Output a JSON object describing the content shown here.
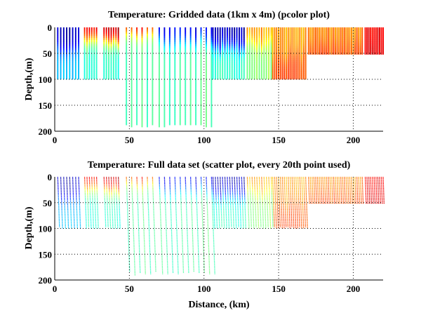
{
  "chart_data": [
    {
      "type": "heatmap",
      "title": "Temperature: Gridded data (1km x 4m) (pcolor plot)",
      "xlabel": "",
      "ylabel": "Depth,(m)",
      "xlim": [
        0,
        220
      ],
      "ylim": [
        200,
        0
      ],
      "xticks": [
        "0",
        "50",
        "100",
        "150",
        "200"
      ],
      "yticks": [
        "0",
        "50",
        "100",
        "150",
        "200"
      ],
      "grid": true,
      "colormap": "jet"
    },
    {
      "type": "scatter",
      "title": "Temperature: Full data set (scatter plot, every 20th point used)",
      "xlabel": "Distance, (km)",
      "ylabel": "Depth,(m)",
      "xlim": [
        0,
        220
      ],
      "ylim": [
        200,
        0
      ],
      "xticks": [
        "0",
        "50",
        "100",
        "150",
        "200"
      ],
      "yticks": [
        "0",
        "50",
        "100",
        "150",
        "200"
      ],
      "grid": true,
      "colormap": "jet"
    }
  ],
  "sections": [
    {
      "x_start": 2,
      "x_end": 16,
      "spacing": 2,
      "max_depth": 100,
      "surface_temp_index": 0.05,
      "deep_temp_index": 0.32,
      "thermocline_depth": 40
    },
    {
      "x_start": 20,
      "x_end": 29,
      "spacing": 1.6,
      "max_depth": 100,
      "surface_temp_index": 0.9,
      "deep_temp_index": 0.42,
      "thermocline_depth": 25
    },
    {
      "x_start": 33,
      "x_end": 44,
      "spacing": 1.6,
      "max_depth": 100,
      "surface_temp_index": 0.95,
      "deep_temp_index": 0.42,
      "thermocline_depth": 25
    },
    {
      "x_start": 48,
      "x_end": 68,
      "spacing": 3.5,
      "max_depth": 190,
      "surface_temp_index": 0.9,
      "deep_temp_index": 0.46,
      "thermocline_depth": 12
    },
    {
      "x_start": 70,
      "x_end": 105,
      "spacing": 3.5,
      "max_depth": 190,
      "surface_temp_index": 0.1,
      "deep_temp_index": 0.46,
      "thermocline_depth": 22
    },
    {
      "x_start": 106,
      "x_end": 128,
      "spacing": 1.6,
      "max_depth": 100,
      "surface_temp_index": 0.05,
      "deep_temp_index": 0.42,
      "thermocline_depth": 35
    },
    {
      "x_start": 129,
      "x_end": 145,
      "spacing": 1.6,
      "max_depth": 100,
      "surface_temp_index": 0.72,
      "deep_temp_index": 0.52,
      "thermocline_depth": 30
    },
    {
      "x_start": 146,
      "x_end": 169,
      "spacing": 1.3,
      "max_depth": 100,
      "surface_temp_index": 0.72,
      "deep_temp_index": 0.8,
      "thermocline_depth": 50
    },
    {
      "x_start": 170,
      "x_end": 207,
      "spacing": 1.2,
      "max_depth": 52,
      "surface_temp_index": 0.75,
      "deep_temp_index": 0.8,
      "thermocline_depth": 30
    },
    {
      "x_start": 208,
      "x_end": 220,
      "spacing": 1.2,
      "max_depth": 52,
      "surface_temp_index": 0.88,
      "deep_temp_index": 0.9,
      "thermocline_depth": 30
    }
  ]
}
